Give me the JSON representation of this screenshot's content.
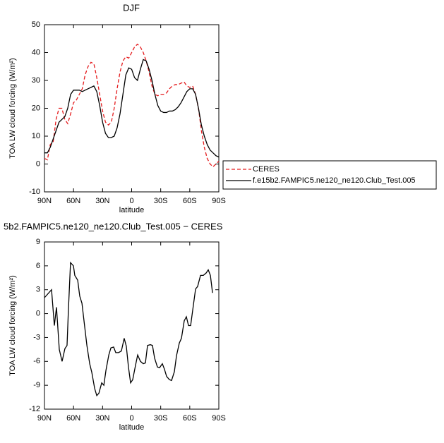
{
  "chart_data": [
    {
      "type": "line",
      "title": "DJF",
      "xlabel": "latitude",
      "ylabel": "TOA LW cloud forcing (W/m²)",
      "xlim": [
        90,
        -90
      ],
      "ylim": [
        -10,
        50
      ],
      "xticks": [
        {
          "value": 90,
          "label": "90N"
        },
        {
          "value": 60,
          "label": "60N"
        },
        {
          "value": 30,
          "label": "30N"
        },
        0,
        {
          "value": -30,
          "label": "30S"
        },
        {
          "value": -60,
          "label": "60S"
        },
        {
          "value": -90,
          "label": "90S"
        }
      ],
      "yticks": [
        -10,
        0,
        10,
        20,
        30,
        40,
        50
      ],
      "legend": "right",
      "x": [
        90,
        87,
        84,
        81,
        78,
        75,
        72,
        69,
        66,
        63,
        60,
        57,
        54,
        51,
        48,
        45,
        42,
        39,
        36,
        33,
        30,
        27,
        24,
        21,
        18,
        15,
        12,
        9,
        6,
        3,
        0,
        -3,
        -6,
        -9,
        -12,
        -15,
        -18,
        -21,
        -24,
        -27,
        -30,
        -33,
        -36,
        -39,
        -42,
        -45,
        -48,
        -51,
        -54,
        -57,
        -60,
        -63,
        -66,
        -69,
        -72,
        -75,
        -78,
        -81,
        -84,
        -87,
        -90
      ],
      "series": [
        {
          "name": "CERES",
          "color": "#e41a1c",
          "dashed": true,
          "values": [
            2,
            1.5,
            7,
            8,
            16,
            20,
            20,
            16,
            14.5,
            18,
            22,
            23,
            25,
            27,
            32,
            35,
            36.5,
            36,
            31,
            25,
            19,
            15,
            14,
            15,
            20,
            27,
            33,
            37,
            38.5,
            38,
            40,
            42,
            43,
            42,
            40,
            37,
            33,
            28,
            25,
            24.5,
            25,
            25,
            25.5,
            27,
            28,
            28.5,
            28.5,
            29,
            29.5,
            28,
            27.5,
            28,
            25,
            20,
            12,
            6,
            2,
            0,
            -1,
            0,
            1
          ]
        },
        {
          "name": "f.e15b2.FAMPIC5.ne120_ne120.Club_Test.005",
          "color": "#000000",
          "dashed": false,
          "values": [
            4,
            4,
            6,
            9,
            12,
            15,
            16,
            17,
            20,
            25,
            26.5,
            26.5,
            26.5,
            26,
            26.5,
            27,
            27.5,
            28,
            26,
            21,
            15,
            11,
            9.5,
            9.5,
            10,
            13,
            18,
            25,
            32,
            34.5,
            34,
            31,
            30,
            34,
            37.5,
            37,
            34,
            30,
            25,
            21,
            19,
            18.5,
            18.5,
            19,
            19,
            19.5,
            20.5,
            22,
            24,
            26,
            27,
            27,
            25,
            20,
            14,
            10,
            7,
            5,
            4,
            3,
            2.5
          ]
        }
      ]
    },
    {
      "type": "line",
      "title": "5b2.FAMPIC5.ne120_ne120.Club_Test.005 − CERES",
      "xlabel": "latitude",
      "ylabel": "TOA LW cloud forcing (W/m²)",
      "xlim": [
        90,
        -90
      ],
      "ylim": [
        -12,
        9
      ],
      "xticks": [
        {
          "value": 90,
          "label": "90N"
        },
        {
          "value": 60,
          "label": "60N"
        },
        {
          "value": 30,
          "label": "30N"
        },
        0,
        {
          "value": -30,
          "label": "30S"
        },
        {
          "value": -60,
          "label": "60S"
        },
        {
          "value": -90,
          "label": "90S"
        }
      ],
      "yticks": [
        -12,
        -9,
        -6,
        -3,
        0,
        3,
        6,
        9
      ],
      "x": [
        90,
        82.7,
        79.8,
        77.6,
        74.7,
        71.8,
        68.9,
        66.7,
        65.3,
        63.1,
        60.1,
        58.7,
        55.7,
        53.6,
        51.3,
        49.1,
        46.2,
        43.3,
        41.1,
        38.2,
        36,
        33.8,
        30.9,
        28.7,
        26.5,
        23.6,
        21.4,
        18.6,
        16.4,
        13.5,
        10.6,
        7.7,
        5.5,
        3.3,
        1.1,
        -1.1,
        -4,
        -6.2,
        -9.1,
        -12,
        -14.2,
        -16.4,
        -19.3,
        -21.5,
        -23.7,
        -26.6,
        -28.8,
        -31.7,
        -33.9,
        -36.1,
        -39,
        -41.2,
        -44.1,
        -46.3,
        -49.2,
        -51.4,
        -54.3,
        -56.5,
        -58.7,
        -60.9,
        -63,
        -66,
        -68.1,
        -71.1,
        -74,
        -76.9,
        -79.1,
        -81.3,
        -83.5
      ],
      "series": [
        {
          "color": "#000000",
          "dashed": false,
          "values": [
            2,
            3,
            -1.5,
            0.8,
            -4.5,
            -6,
            -4.4,
            -4,
            0.4,
            6.4,
            6,
            4.8,
            4.2,
            2.2,
            1.3,
            -1,
            -4,
            -6.3,
            -7.4,
            -9.4,
            -10.3,
            -10,
            -8.7,
            -9,
            -7.1,
            -5.2,
            -4.3,
            -4.2,
            -4.9,
            -4.9,
            -4.7,
            -3.1,
            -4.1,
            -6.7,
            -8.7,
            -8.3,
            -6.5,
            -5.2,
            -6,
            -6.3,
            -6.2,
            -4,
            -3.9,
            -4,
            -5.6,
            -6.7,
            -6.8,
            -6.3,
            -7,
            -7.9,
            -8.3,
            -8.4,
            -7.3,
            -5.3,
            -3.7,
            -3.1,
            -0.9,
            -0.4,
            -1.5,
            -1.5,
            0.4,
            3.1,
            3.4,
            4.8,
            4.8,
            5.1,
            5.5,
            4.8,
            2.6
          ]
        }
      ]
    }
  ]
}
